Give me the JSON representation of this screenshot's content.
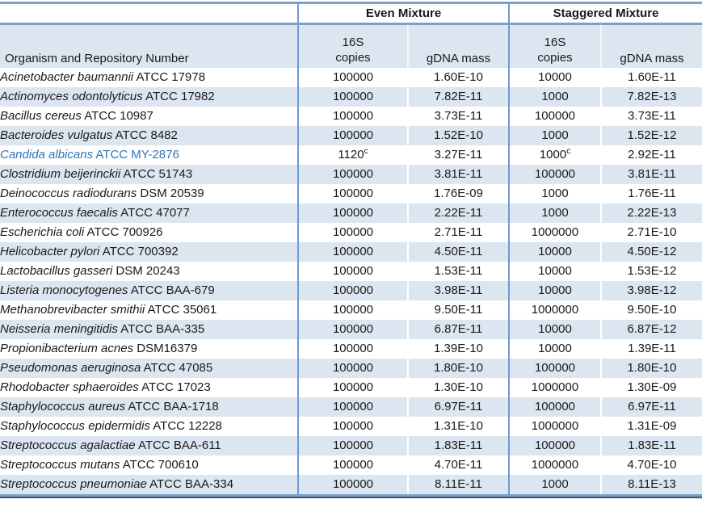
{
  "colors": {
    "stripe": "#dce6f1",
    "rule": "#7ba0cc",
    "vline": "#6f9ad0",
    "dark_rule": "#44546a",
    "highlight_text": "#2e75b6",
    "ink": "#1a1a1a"
  },
  "table": {
    "organism_header": "Organism and Repository Number",
    "group_headers": {
      "even": "Even Mixture",
      "staggered": "Staggered Mixture"
    },
    "sub_headers": {
      "copies_line1": "16S",
      "copies_line2": "copies",
      "gdna": "gDNA mass"
    },
    "rows": [
      {
        "organism_italic": "Acinetobacter baumannii",
        "organism_rest": " ATCC 17978",
        "even_copies": "100000",
        "even_copies_sup": "",
        "even_gdna": "1.60E-10",
        "stag_copies": "10000",
        "stag_copies_sup": "",
        "stag_gdna": "1.60E-11",
        "highlight": false
      },
      {
        "organism_italic": "Actinomyces odontolyticus",
        "organism_rest": " ATCC 17982",
        "even_copies": "100000",
        "even_copies_sup": "",
        "even_gdna": "7.82E-11",
        "stag_copies": "1000",
        "stag_copies_sup": "",
        "stag_gdna": "7.82E-13",
        "highlight": false
      },
      {
        "organism_italic": "Bacillus cereus",
        "organism_rest": " ATCC 10987",
        "even_copies": "100000",
        "even_copies_sup": "",
        "even_gdna": "3.73E-11",
        "stag_copies": "100000",
        "stag_copies_sup": "",
        "stag_gdna": "3.73E-11",
        "highlight": false
      },
      {
        "organism_italic": "Bacteroides vulgatus",
        "organism_rest": " ATCC 8482",
        "even_copies": "100000",
        "even_copies_sup": "",
        "even_gdna": "1.52E-10",
        "stag_copies": "1000",
        "stag_copies_sup": "",
        "stag_gdna": "1.52E-12",
        "highlight": false
      },
      {
        "organism_italic": "Candida albicans",
        "organism_rest": " ATCC MY-2876",
        "even_copies": "1120",
        "even_copies_sup": "c",
        "even_gdna": "3.27E-11",
        "stag_copies": "1000",
        "stag_copies_sup": "c",
        "stag_gdna": "2.92E-11",
        "highlight": true
      },
      {
        "organism_italic": "Clostridium beijerinckii",
        "organism_rest": " ATCC 51743",
        "even_copies": "100000",
        "even_copies_sup": "",
        "even_gdna": "3.81E-11",
        "stag_copies": "100000",
        "stag_copies_sup": "",
        "stag_gdna": "3.81E-11",
        "highlight": false
      },
      {
        "organism_italic": "Deinococcus radiodurans",
        "organism_rest": " DSM 20539",
        "even_copies": "100000",
        "even_copies_sup": "",
        "even_gdna": "1.76E-09",
        "stag_copies": "1000",
        "stag_copies_sup": "",
        "stag_gdna": "1.76E-11",
        "highlight": false
      },
      {
        "organism_italic": "Enterococcus faecalis",
        "organism_rest": " ATCC 47077",
        "even_copies": "100000",
        "even_copies_sup": "",
        "even_gdna": "2.22E-11",
        "stag_copies": "1000",
        "stag_copies_sup": "",
        "stag_gdna": "2.22E-13",
        "highlight": false
      },
      {
        "organism_italic": "Escherichia coli",
        "organism_rest": " ATCC 700926",
        "even_copies": "100000",
        "even_copies_sup": "",
        "even_gdna": "2.71E-11",
        "stag_copies": "1000000",
        "stag_copies_sup": "",
        "stag_gdna": "2.71E-10",
        "highlight": false
      },
      {
        "organism_italic": "Helicobacter pylori",
        "organism_rest": " ATCC 700392",
        "even_copies": "100000",
        "even_copies_sup": "",
        "even_gdna": "4.50E-11",
        "stag_copies": "10000",
        "stag_copies_sup": "",
        "stag_gdna": "4.50E-12",
        "highlight": false
      },
      {
        "organism_italic": "Lactobacillus gasseri",
        "organism_rest": " DSM 20243",
        "even_copies": "100000",
        "even_copies_sup": "",
        "even_gdna": "1.53E-11",
        "stag_copies": "10000",
        "stag_copies_sup": "",
        "stag_gdna": "1.53E-12",
        "highlight": false
      },
      {
        "organism_italic": "Listeria monocytogenes",
        "organism_rest": " ATCC BAA-679",
        "even_copies": "100000",
        "even_copies_sup": "",
        "even_gdna": "3.98E-11",
        "stag_copies": "10000",
        "stag_copies_sup": "",
        "stag_gdna": "3.98E-12",
        "highlight": false
      },
      {
        "organism_italic": "Methanobrevibacter smithii",
        "organism_rest": " ATCC 35061",
        "even_copies": "100000",
        "even_copies_sup": "",
        "even_gdna": "9.50E-11",
        "stag_copies": "1000000",
        "stag_copies_sup": "",
        "stag_gdna": "9.50E-10",
        "highlight": false
      },
      {
        "organism_italic": "Neisseria meningitidis",
        "organism_rest": " ATCC BAA-335",
        "even_copies": "100000",
        "even_copies_sup": "",
        "even_gdna": "6.87E-11",
        "stag_copies": "10000",
        "stag_copies_sup": "",
        "stag_gdna": "6.87E-12",
        "highlight": false
      },
      {
        "organism_italic": "Propionibacterium acnes",
        "organism_rest": " DSM16379",
        "even_copies": "100000",
        "even_copies_sup": "",
        "even_gdna": "1.39E-10",
        "stag_copies": "10000",
        "stag_copies_sup": "",
        "stag_gdna": "1.39E-11",
        "highlight": false
      },
      {
        "organism_italic": "Pseudomonas aeruginosa",
        "organism_rest": " ATCC 47085",
        "even_copies": "100000",
        "even_copies_sup": "",
        "even_gdna": "1.80E-10",
        "stag_copies": "100000",
        "stag_copies_sup": "",
        "stag_gdna": "1.80E-10",
        "highlight": false
      },
      {
        "organism_italic": "Rhodobacter sphaeroides",
        "organism_rest": " ATCC 17023",
        "even_copies": "100000",
        "even_copies_sup": "",
        "even_gdna": "1.30E-10",
        "stag_copies": "1000000",
        "stag_copies_sup": "",
        "stag_gdna": "1.30E-09",
        "highlight": false
      },
      {
        "organism_italic": "Staphylococcus aureus",
        "organism_rest": " ATCC BAA-1718",
        "even_copies": "100000",
        "even_copies_sup": "",
        "even_gdna": "6.97E-11",
        "stag_copies": "100000",
        "stag_copies_sup": "",
        "stag_gdna": "6.97E-11",
        "highlight": false
      },
      {
        "organism_italic": "Staphylococcus epidermidis",
        "organism_rest": " ATCC 12228",
        "even_copies": "100000",
        "even_copies_sup": "",
        "even_gdna": "1.31E-10",
        "stag_copies": "1000000",
        "stag_copies_sup": "",
        "stag_gdna": "1.31E-09",
        "highlight": false
      },
      {
        "organism_italic": "Streptococcus agalactiae",
        "organism_rest": " ATCC BAA-611",
        "even_copies": "100000",
        "even_copies_sup": "",
        "even_gdna": "1.83E-11",
        "stag_copies": "100000",
        "stag_copies_sup": "",
        "stag_gdna": "1.83E-11",
        "highlight": false
      },
      {
        "organism_italic": "Streptococcus mutans",
        "organism_rest": " ATCC 700610",
        "even_copies": "100000",
        "even_copies_sup": "",
        "even_gdna": "4.70E-11",
        "stag_copies": "1000000",
        "stag_copies_sup": "",
        "stag_gdna": "4.70E-10",
        "highlight": false
      },
      {
        "organism_italic": "Streptococcus pneumoniae",
        "organism_rest": " ATCC BAA-334",
        "even_copies": "100000",
        "even_copies_sup": "",
        "even_gdna": "8.11E-11",
        "stag_copies": "1000",
        "stag_copies_sup": "",
        "stag_gdna": "8.11E-13",
        "highlight": false
      }
    ]
  }
}
